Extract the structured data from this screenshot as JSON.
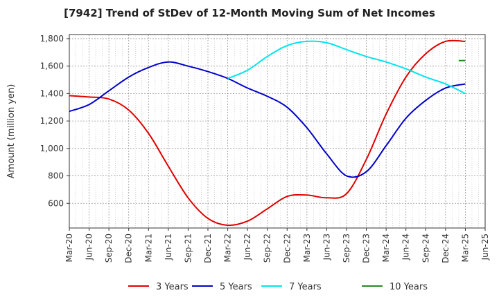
{
  "chart_data": {
    "type": "line",
    "title": "[7942]  Trend of StDev of 12-Month Moving Sum of Net Incomes",
    "ylabel": "Amount (million yen)",
    "xlabel": "",
    "x_ticks": [
      "Mar-20",
      "Jun-20",
      "Sep-20",
      "Dec-20",
      "Mar-21",
      "Jun-21",
      "Sep-21",
      "Dec-21",
      "Mar-22",
      "Jun-22",
      "Sep-22",
      "Dec-22",
      "Mar-23",
      "Jun-23",
      "Sep-23",
      "Dec-23",
      "Mar-24",
      "Jun-24",
      "Sep-24",
      "Dec-24",
      "Mar-25",
      "Jun-25"
    ],
    "y_ticks": [
      600,
      800,
      1000,
      1200,
      1400,
      1600,
      1800
    ],
    "y_tick_labels": [
      "600",
      "800",
      "1,000",
      "1,200",
      "1,400",
      "1,600",
      "1,800"
    ],
    "ylim": [
      420,
      1830
    ],
    "grid": true,
    "legend_position": "bottom",
    "series": [
      {
        "name": "3 Years",
        "color": "#e00000",
        "x": [
          "Mar-20",
          "Jun-20",
          "Sep-20",
          "Dec-20",
          "Mar-21",
          "Jun-21",
          "Sep-21",
          "Dec-21",
          "Mar-22",
          "Jun-22",
          "Sep-22",
          "Dec-22",
          "Mar-23",
          "Jun-23",
          "Sep-23",
          "Dec-23",
          "Mar-24",
          "Jun-24",
          "Sep-24",
          "Dec-24",
          "Mar-25"
        ],
        "values": [
          1385,
          1375,
          1360,
          1280,
          1110,
          870,
          640,
          490,
          440,
          470,
          560,
          650,
          660,
          640,
          670,
          920,
          1250,
          1520,
          1690,
          1780,
          1780
        ]
      },
      {
        "name": "5 Years",
        "color": "#0000cc",
        "x": [
          "Mar-20",
          "Jun-20",
          "Sep-20",
          "Dec-20",
          "Mar-21",
          "Jun-21",
          "Sep-21",
          "Dec-21",
          "Mar-22",
          "Jun-22",
          "Sep-22",
          "Dec-22",
          "Mar-23",
          "Jun-23",
          "Sep-23",
          "Dec-23",
          "Mar-24",
          "Jun-24",
          "Sep-24",
          "Dec-24",
          "Mar-25"
        ],
        "values": [
          1270,
          1320,
          1420,
          1520,
          1590,
          1630,
          1600,
          1560,
          1510,
          1440,
          1380,
          1300,
          1150,
          960,
          800,
          830,
          1020,
          1220,
          1350,
          1440,
          1470
        ]
      },
      {
        "name": "7 Years",
        "color": "#00e5ee",
        "x": [
          "Mar-22",
          "Jun-22",
          "Sep-22",
          "Dec-22",
          "Mar-23",
          "Jun-23",
          "Sep-23",
          "Dec-23",
          "Mar-24",
          "Jun-24",
          "Sep-24",
          "Dec-24",
          "Mar-25"
        ],
        "values": [
          1510,
          1570,
          1670,
          1750,
          1780,
          1770,
          1720,
          1670,
          1630,
          1580,
          1520,
          1470,
          1400
        ]
      },
      {
        "name": "10 Years",
        "color": "#228b22",
        "x": [
          "Feb-25",
          "Mar-25"
        ],
        "values": [
          1640,
          1640
        ]
      }
    ]
  }
}
